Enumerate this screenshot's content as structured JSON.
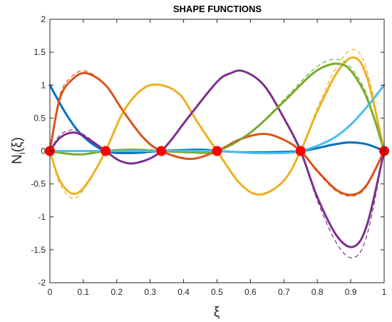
{
  "chart_data": {
    "type": "line",
    "title": "SHAPE FUNCTIONS",
    "xlabel": "ξ",
    "ylabel": "N",
    "ylabel_sub": "i",
    "ylabel_suffix": "(ξ)",
    "xlim": [
      0,
      1
    ],
    "ylim": [
      -2,
      2
    ],
    "xticks": [
      "0",
      "0.1",
      "0.2",
      "0.3",
      "0.4",
      "0.5",
      "0.6",
      "0.7",
      "0.8",
      "0.9",
      "1"
    ],
    "yticks": [
      "-2",
      "-1.5",
      "-1",
      "-0.5",
      "0",
      "0.5",
      "1",
      "1.5",
      "2"
    ],
    "grid": false,
    "nodes_x": [
      0,
      0.1667,
      0.3333,
      0.5,
      0.75,
      1
    ],
    "series": [
      {
        "color": "#0072BD",
        "x": [
          0,
          0.05,
          0.1,
          0.1667,
          0.25,
          0.3333,
          0.45,
          0.5,
          0.6,
          0.75,
          0.85,
          0.9,
          0.95,
          1
        ],
        "y": [
          1,
          0.55,
          0.22,
          0,
          -0.03,
          0,
          0.02,
          0,
          -0.02,
          0,
          0.1,
          0.13,
          0.1,
          0
        ]
      },
      {
        "color": "#D95319",
        "x": [
          0,
          0.03,
          0.07,
          0.11,
          0.1667,
          0.22,
          0.28,
          0.3333,
          0.42,
          0.5,
          0.57,
          0.64,
          0.7,
          0.75,
          0.8,
          0.86,
          0.91,
          0.95,
          1
        ],
        "y": [
          0,
          0.8,
          1.1,
          1.18,
          1,
          0.6,
          0.2,
          0,
          -0.12,
          0,
          0.18,
          0.26,
          0.17,
          0,
          -0.3,
          -0.6,
          -0.66,
          -0.5,
          0
        ]
      },
      {
        "color": "#EDB120",
        "x": [
          0,
          0.03,
          0.07,
          0.11,
          0.1667,
          0.22,
          0.28,
          0.3333,
          0.39,
          0.44,
          0.5,
          0.57,
          0.63,
          0.7,
          0.75,
          0.8,
          0.86,
          0.91,
          0.95,
          1
        ],
        "y": [
          0,
          -0.45,
          -0.65,
          -0.5,
          0,
          0.6,
          0.95,
          1,
          0.85,
          0.45,
          0,
          -0.5,
          -0.66,
          -0.45,
          0,
          0.6,
          1.2,
          1.42,
          1.1,
          0
        ]
      },
      {
        "color": "#7E2F8E",
        "x": [
          0,
          0.03,
          0.07,
          0.11,
          0.1667,
          0.21,
          0.26,
          0.3333,
          0.42,
          0.5,
          0.54,
          0.58,
          0.64,
          0.7,
          0.75,
          0.8,
          0.86,
          0.91,
          0.95,
          1
        ],
        "y": [
          0,
          0.2,
          0.28,
          0.2,
          0,
          -0.15,
          -0.18,
          0,
          0.55,
          1.05,
          1.18,
          1.21,
          1.0,
          0.5,
          0,
          -0.7,
          -1.3,
          -1.45,
          -1.1,
          0
        ]
      },
      {
        "color": "#77AC30",
        "x": [
          0,
          0.05,
          0.1,
          0.1667,
          0.25,
          0.3333,
          0.42,
          0.5,
          0.6,
          0.7,
          0.78,
          0.83,
          0.87,
          0.9,
          0.94,
          0.97,
          1
        ],
        "y": [
          0,
          -0.04,
          -0.05,
          0,
          0.02,
          0,
          -0.02,
          0,
          0.28,
          0.75,
          1.15,
          1.3,
          1.32,
          1.22,
          0.9,
          0.5,
          0
        ]
      },
      {
        "color": "#4DBEEE",
        "x": [
          0,
          0.1667,
          0.3333,
          0.5,
          0.6,
          0.7,
          0.75,
          0.8,
          0.85,
          0.9,
          0.95,
          1
        ],
        "y": [
          0,
          0,
          0,
          0,
          -0.03,
          -0.03,
          0,
          0.08,
          0.2,
          0.4,
          0.68,
          1
        ]
      }
    ],
    "dashed_series": [
      {
        "color": "#D95319",
        "x": [
          0,
          0.03,
          0.07,
          0.11,
          0.1667,
          0.22,
          0.28,
          0.3333,
          0.42,
          0.5,
          0.57,
          0.64,
          0.7,
          0.75,
          0.8,
          0.86,
          0.91,
          0.95,
          1
        ],
        "y": [
          0,
          0.85,
          1.15,
          1.21,
          1,
          0.6,
          0.2,
          0,
          -0.12,
          0,
          0.18,
          0.26,
          0.17,
          0,
          -0.32,
          -0.62,
          -0.68,
          -0.52,
          0
        ]
      },
      {
        "color": "#EDB120",
        "x": [
          0,
          0.03,
          0.07,
          0.11,
          0.1667,
          0.22,
          0.28,
          0.3333,
          0.39,
          0.44,
          0.5,
          0.57,
          0.63,
          0.7,
          0.75,
          0.8,
          0.86,
          0.91,
          0.95,
          1
        ],
        "y": [
          0,
          -0.5,
          -0.72,
          -0.52,
          0,
          0.6,
          0.95,
          1,
          0.85,
          0.45,
          0,
          -0.5,
          -0.66,
          -0.45,
          0,
          0.65,
          1.3,
          1.54,
          1.2,
          0
        ]
      },
      {
        "color": "#7E2F8E",
        "x": [
          0,
          0.03,
          0.07,
          0.11,
          0.1667,
          0.21,
          0.26,
          0.3333,
          0.42,
          0.5,
          0.54,
          0.58,
          0.64,
          0.7,
          0.75,
          0.8,
          0.86,
          0.91,
          0.95,
          1
        ],
        "y": [
          0,
          0.24,
          0.32,
          0.22,
          0,
          -0.15,
          -0.18,
          0,
          0.55,
          1.05,
          1.18,
          1.21,
          1.0,
          0.5,
          0,
          -0.75,
          -1.42,
          -1.62,
          -1.25,
          0
        ]
      },
      {
        "color": "#77AC30",
        "x": [
          0,
          0.05,
          0.1,
          0.1667,
          0.25,
          0.3333,
          0.42,
          0.5,
          0.6,
          0.7,
          0.78,
          0.83,
          0.87,
          0.9,
          0.94,
          0.97,
          1
        ],
        "y": [
          0,
          -0.04,
          -0.05,
          0,
          0.02,
          0,
          -0.02,
          0,
          0.28,
          0.78,
          1.2,
          1.37,
          1.38,
          1.27,
          0.95,
          0.52,
          0
        ]
      }
    ],
    "marker_color": "#FF0000"
  }
}
